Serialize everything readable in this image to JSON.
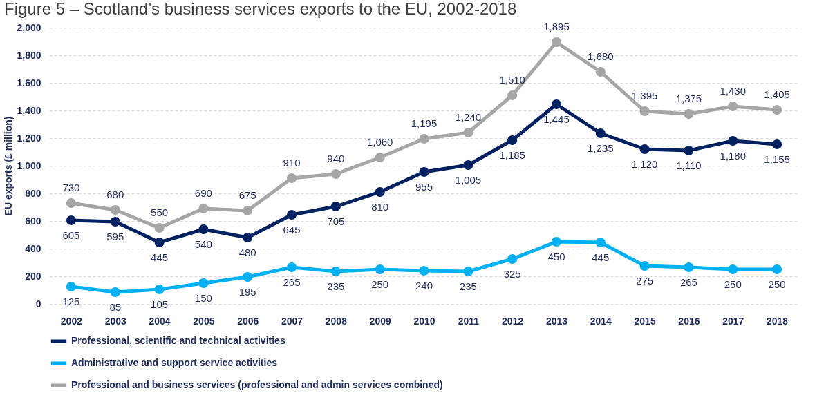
{
  "chart_data": {
    "type": "line",
    "title": "Figure 5 – Scotland’s business services exports to the EU, 2002-2018",
    "ylabel": "EU exports (£ million)",
    "categories": [
      "2002",
      "2003",
      "2004",
      "2005",
      "2006",
      "2007",
      "2008",
      "2009",
      "2010",
      "2011",
      "2012",
      "2013",
      "2014",
      "2015",
      "2016",
      "2017",
      "2018"
    ],
    "series": [
      {
        "name": "Professional, scientific and technical activities",
        "color": "#002060",
        "values": [
          605,
          595,
          445,
          540,
          480,
          645,
          705,
          810,
          955,
          1005,
          1185,
          1445,
          1235,
          1120,
          1110,
          1180,
          1155
        ],
        "value_labels": [
          "605",
          "595",
          "445",
          "540",
          "480",
          "645",
          "705",
          "810",
          "955",
          "1,005",
          "1,185",
          "1,445",
          "1,235",
          "1,120",
          "1,110",
          "1,180",
          "1,155"
        ]
      },
      {
        "name": "Administrative and support service activities",
        "color": "#00b0f0",
        "values": [
          125,
          85,
          105,
          150,
          195,
          265,
          235,
          250,
          240,
          235,
          325,
          450,
          445,
          275,
          265,
          250,
          250
        ],
        "value_labels": [
          "125",
          "85",
          "105",
          "150",
          "195",
          "265",
          "235",
          "250",
          "240",
          "235",
          "325",
          "450",
          "445",
          "275",
          "265",
          "250",
          "250"
        ]
      },
      {
        "name": "Professional and business services (professional and admin services combined)",
        "color": "#a6a6a6",
        "values": [
          730,
          680,
          550,
          690,
          675,
          910,
          940,
          1060,
          1195,
          1240,
          1510,
          1895,
          1680,
          1395,
          1375,
          1430,
          1405
        ],
        "value_labels": [
          "730",
          "680",
          "550",
          "690",
          "675",
          "910",
          "940",
          "1,060",
          "1,195",
          "1,240",
          "1,510",
          "1,895",
          "1,680",
          "1,395",
          "1,375",
          "1,430",
          "1,405"
        ]
      }
    ],
    "ylim": [
      0,
      2000
    ],
    "yticks": [
      0,
      200,
      400,
      600,
      800,
      {
        "value": 1000,
        "label": "1,000"
      },
      {
        "value": 1200,
        "label": "1,200"
      },
      {
        "value": 1400,
        "label": "1,400"
      },
      {
        "value": 1600,
        "label": "1,600"
      },
      {
        "value": 1800,
        "label": "1,800"
      },
      {
        "value": 2000,
        "label": "2,000"
      }
    ],
    "grid": "y",
    "legend": "bottom",
    "marker": "circle"
  }
}
